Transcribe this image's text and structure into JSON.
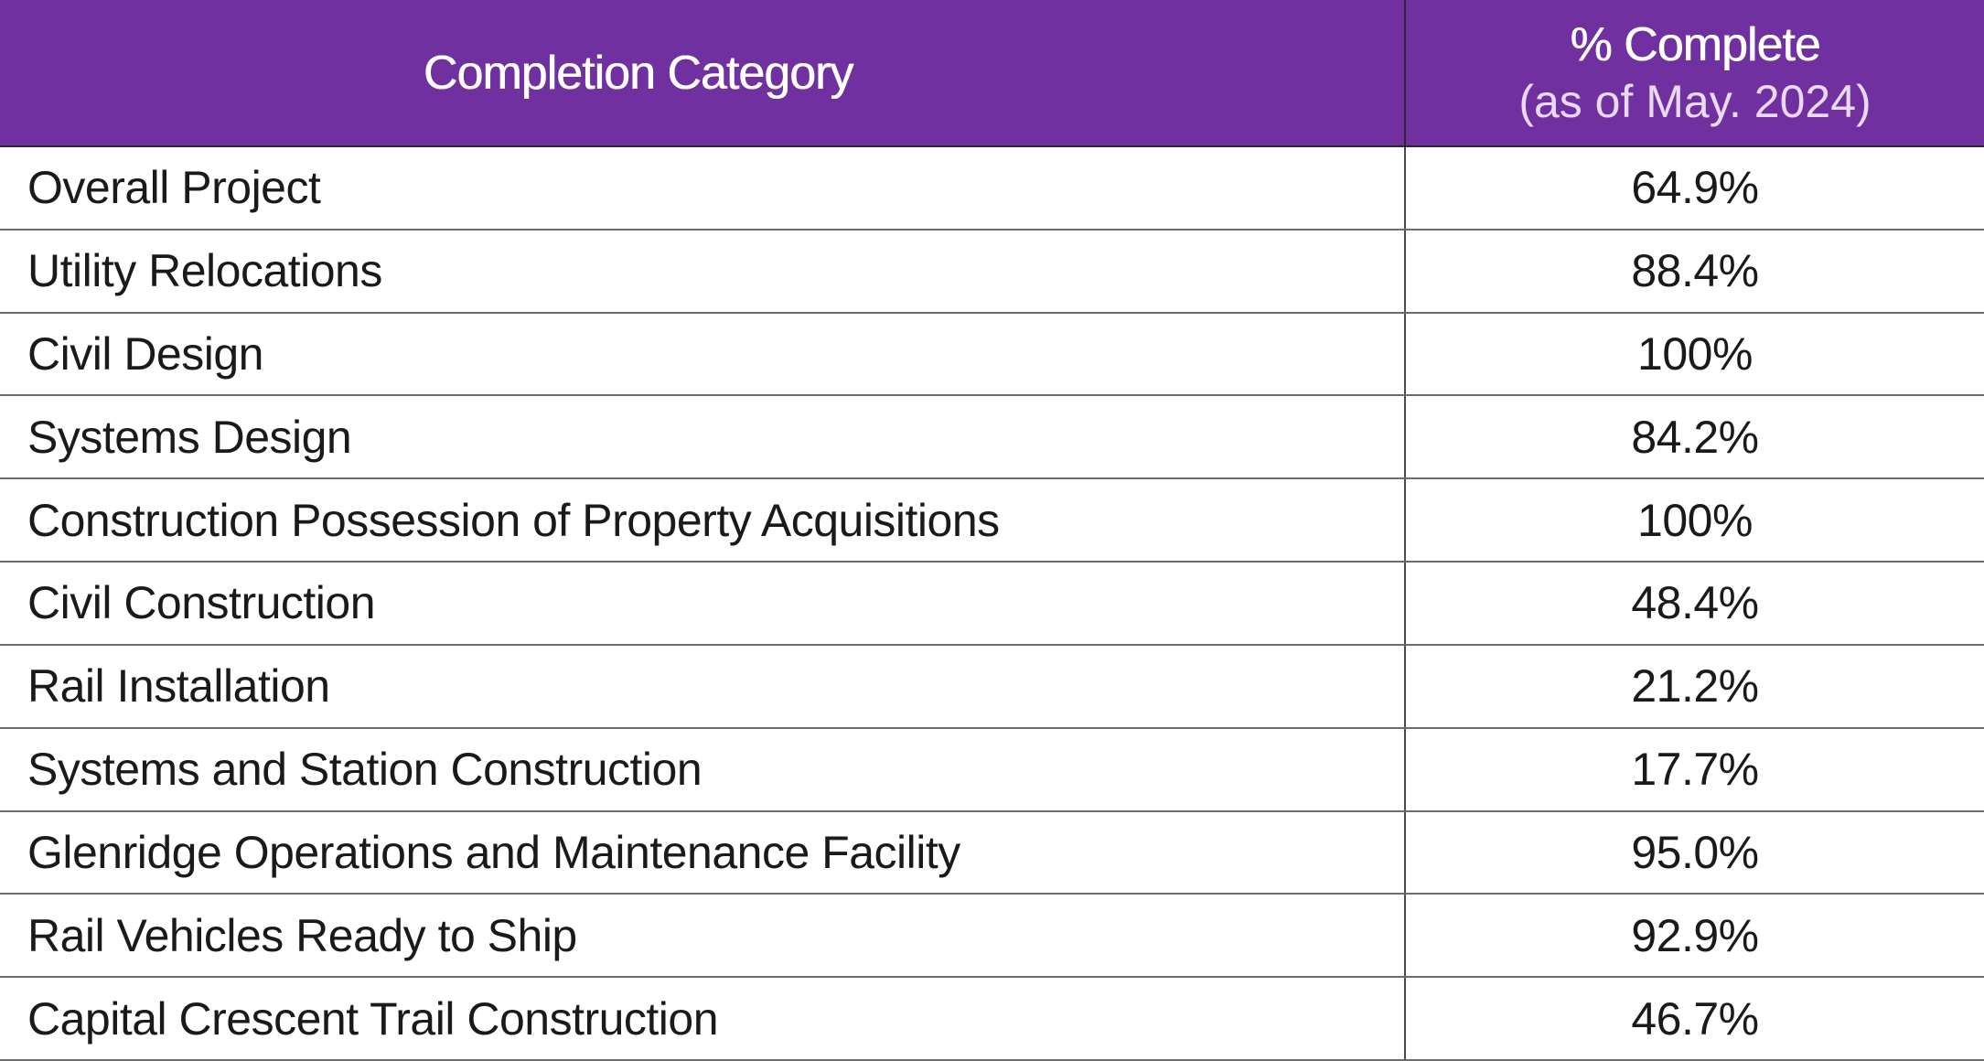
{
  "table": {
    "headers": {
      "category": "Completion Category",
      "percent": "% Complete",
      "percent_sub": "(as of May. 2024)"
    },
    "colors": {
      "header_background": "#7030a0",
      "header_text": "#ffffff"
    },
    "rows": [
      {
        "category": "Overall Project",
        "percent": "64.9%"
      },
      {
        "category": "Utility Relocations",
        "percent": "88.4%"
      },
      {
        "category": "Civil Design",
        "percent": "100%"
      },
      {
        "category": "Systems Design",
        "percent": "84.2%"
      },
      {
        "category": "Construction Possession of Property Acquisitions",
        "percent": "100%"
      },
      {
        "category": "Civil Construction",
        "percent": "48.4%"
      },
      {
        "category": "Rail Installation",
        "percent": "21.2%"
      },
      {
        "category": "Systems and Station Construction",
        "percent": "17.7%"
      },
      {
        "category": "Glenridge Operations and Maintenance Facility",
        "percent": "95.0%"
      },
      {
        "category": "Rail Vehicles Ready to Ship",
        "percent": "92.9%"
      },
      {
        "category": "Capital Crescent Trail Construction",
        "percent": "46.7%"
      }
    ]
  }
}
